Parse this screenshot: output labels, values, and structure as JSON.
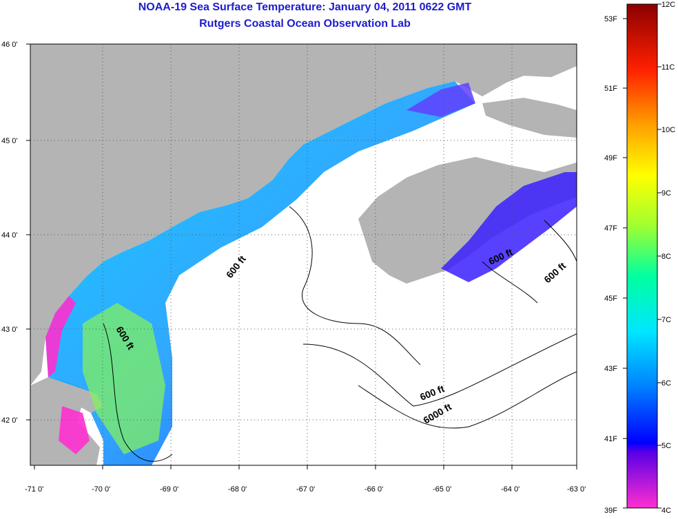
{
  "header": {
    "title": "NOAA-19 Sea Surface Temperature:  January 04, 2011 0622 GMT",
    "subtitle": "Rutgers Coastal Ocean Observation Lab"
  },
  "axes": {
    "lon_labels": [
      "-71 0'",
      "-70 0'",
      "-69 0'",
      "-68 0'",
      "-67 0'",
      "-66 0'",
      "-65 0'",
      "-64 0'",
      "-63 0'"
    ],
    "lat_labels": [
      "46 0'",
      "45 0'",
      "44 0'",
      "43 0'",
      "42 0'"
    ]
  },
  "contour_labels": [
    "600 ft",
    "600 ft",
    "600 ft",
    "600 ft",
    "600 ft",
    "6000 ft"
  ],
  "colorbar": {
    "fahrenheit": [
      "53F",
      "51F",
      "49F",
      "47F",
      "45F",
      "43F",
      "41F",
      "39F"
    ],
    "celsius": [
      "12C",
      "11C",
      "10C",
      "9C",
      "8C",
      "7C",
      "6C",
      "5C",
      "4C"
    ]
  },
  "colors": {
    "title": "#1c1ccd",
    "land": "#b4b4b4",
    "ocean_nodata": "#ffffff",
    "warm": "#8b0000",
    "cold": "#ff2fd0"
  }
}
